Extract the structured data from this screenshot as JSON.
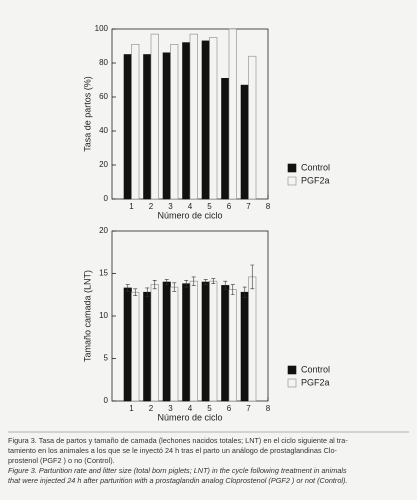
{
  "chart_data": [
    {
      "type": "bar",
      "ylabel": "Tasa de partos (%)",
      "xlabel": "Número de ciclo",
      "categories": [
        1,
        2,
        3,
        4,
        5,
        6,
        7
      ],
      "xlim": [
        0,
        8
      ],
      "xticks": [
        1,
        2,
        3,
        4,
        5,
        6,
        7,
        8
      ],
      "ylim": [
        0,
        100
      ],
      "yticks": [
        0,
        20,
        40,
        60,
        80,
        100
      ],
      "legend": "lower right",
      "series": [
        {
          "name": "Control",
          "color": "#111111",
          "values": [
            85,
            85,
            86,
            92,
            93,
            71,
            67
          ]
        },
        {
          "name": "PGF2a",
          "color": "#f4f4f2",
          "values": [
            91,
            97,
            91,
            97,
            95,
            100,
            84
          ]
        }
      ]
    },
    {
      "type": "bar",
      "ylabel": "Tamaño camada (LNT)",
      "xlabel": "Número de ciclo",
      "categories": [
        1,
        2,
        3,
        4,
        5,
        6,
        7
      ],
      "xlim": [
        0,
        8
      ],
      "xticks": [
        1,
        2,
        3,
        4,
        5,
        6,
        7,
        8
      ],
      "ylim": [
        0,
        20
      ],
      "yticks": [
        0,
        5,
        10,
        15,
        20
      ],
      "legend": "lower right",
      "series": [
        {
          "name": "Control",
          "color": "#111111",
          "values": [
            13.3,
            12.8,
            14.0,
            13.8,
            14.0,
            13.6,
            12.8
          ],
          "errors": [
            0.4,
            0.5,
            0.3,
            0.4,
            0.3,
            0.5,
            0.6
          ]
        },
        {
          "name": "PGF2a",
          "color": "#f4f4f2",
          "values": [
            12.8,
            13.7,
            13.4,
            14.1,
            14.1,
            13.1,
            14.6
          ],
          "errors": [
            0.4,
            0.5,
            0.5,
            0.5,
            0.3,
            0.6,
            1.4
          ]
        }
      ]
    }
  ],
  "caption": {
    "spanish": [
      "Figura 3. Tasa de partos y tamaño de camada (lechones nacidos totales; LNT) en el ciclo siguiente al tra-",
      "tamiento en los animales a los que se le inyectó 24 h tras el parto un análogo de prostaglandinas Clo-",
      "prostenol (PGF2 ) o no (Control)."
    ],
    "english": [
      "Figure 3. Parturition rate and litter size (total born piglets; LNT) in the cycle following treatment in animals",
      "that were injected 24 h after parturition with a prostaglandin analog Cloprostenol (PGF2 ) or not (Control)."
    ]
  }
}
